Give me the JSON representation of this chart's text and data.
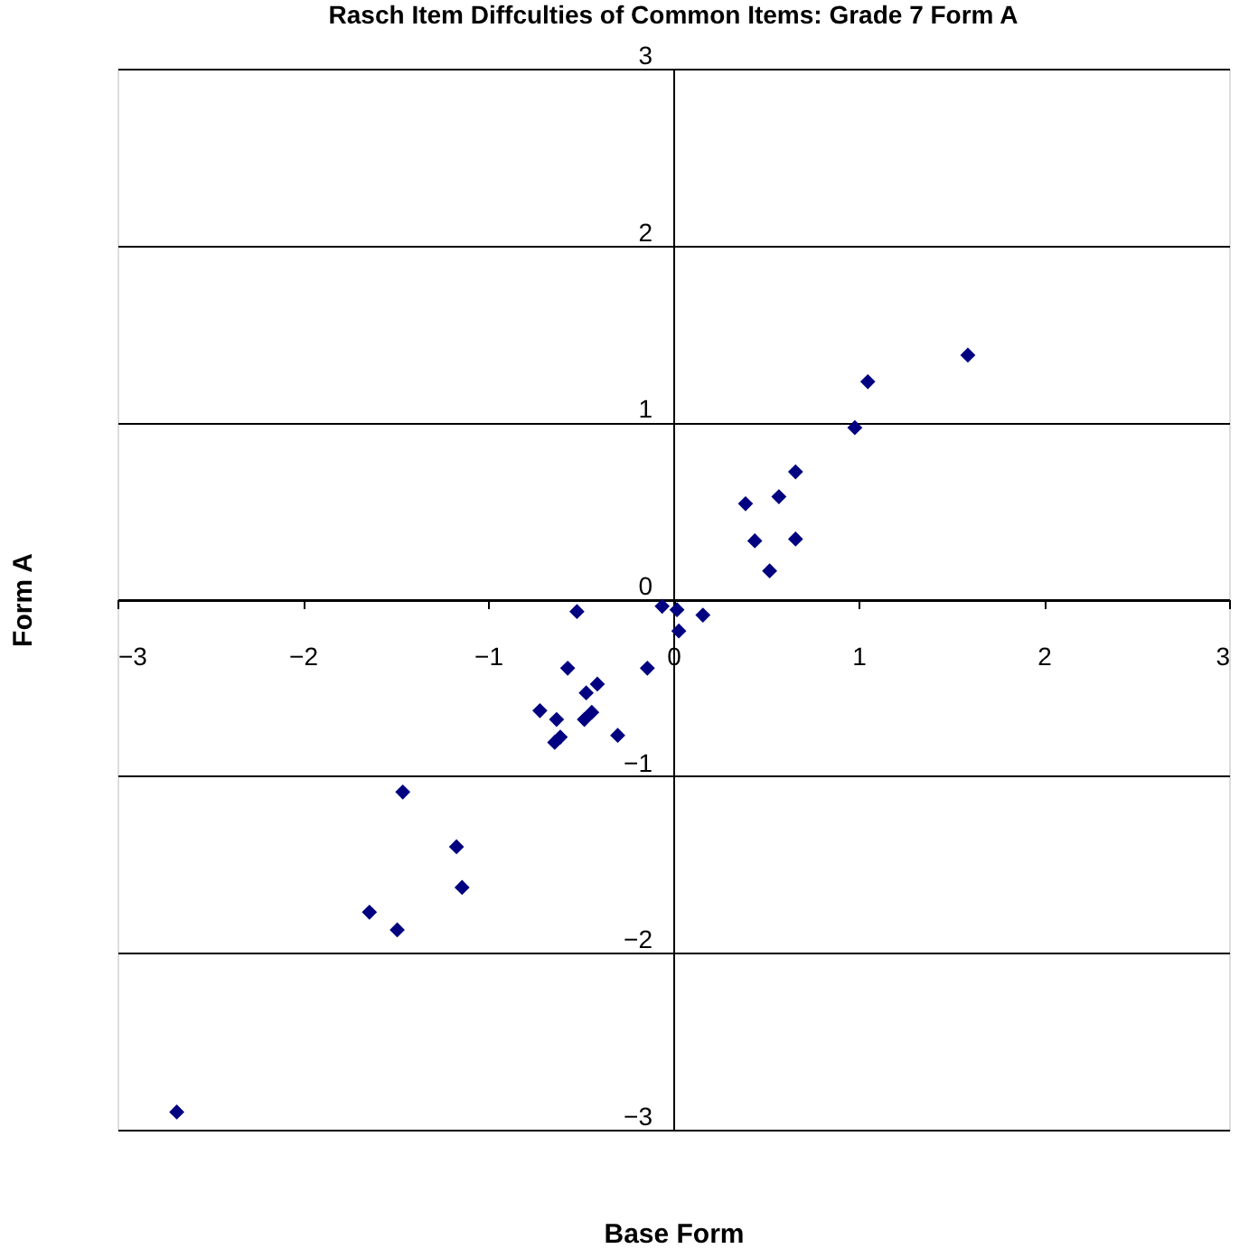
{
  "chart_data": {
    "type": "scatter",
    "title": "Rasch Item Diffculties of Common Items: Grade 7 Form A",
    "xlabel": "Base Form",
    "ylabel": "Form A",
    "series": [
      {
        "color": "#000080",
        "x": [
          -2.68,
          -1.64,
          -1.49,
          -1.46,
          -1.17,
          -1.14,
          -0.52,
          -0.57,
          -0.41,
          -0.47,
          -0.72,
          -0.63,
          -0.44,
          -0.48,
          -0.64,
          -0.61,
          -0.3,
          -0.14,
          -0.06,
          0.02,
          0.16,
          0.03,
          0.39,
          0.44,
          0.52,
          0.57,
          0.66,
          0.66,
          0.98,
          1.05,
          1.59
        ],
        "values": [
          -2.9,
          -1.77,
          -1.87,
          -1.09,
          -1.4,
          -1.63,
          -0.07,
          -0.39,
          -0.48,
          -0.53,
          -0.63,
          -0.68,
          -0.64,
          -0.68,
          -0.81,
          -0.78,
          -0.77,
          -0.39,
          -0.04,
          -0.06,
          -0.09,
          -0.18,
          0.54,
          0.33,
          0.16,
          0.58,
          0.72,
          0.34,
          0.97,
          1.23,
          1.38
        ]
      }
    ],
    "xlim": [
      -3,
      3
    ],
    "ylim": [
      -3,
      3
    ],
    "xticks": [
      -3,
      -2,
      -1,
      0,
      1,
      2,
      3
    ],
    "yticks": [
      -3,
      -2,
      -1,
      0,
      1,
      2,
      3
    ],
    "grid": "y",
    "marker": "diamond"
  }
}
